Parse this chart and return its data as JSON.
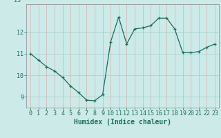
{
  "x": [
    0,
    1,
    2,
    3,
    4,
    5,
    6,
    7,
    8,
    9,
    10,
    11,
    12,
    13,
    14,
    15,
    16,
    17,
    18,
    19,
    20,
    21,
    22,
    23
  ],
  "y": [
    11.0,
    10.7,
    10.4,
    10.2,
    9.9,
    9.5,
    9.2,
    8.85,
    8.82,
    9.1,
    11.55,
    12.7,
    11.45,
    12.15,
    12.2,
    12.3,
    12.65,
    12.65,
    12.15,
    11.05,
    11.05,
    11.1,
    11.3,
    11.45
  ],
  "line_color": "#1a6b5a",
  "marker": "+",
  "bg_color": "#cceae8",
  "vgrid_color": "#d9b8b8",
  "hgrid_color": "#aad4d0",
  "xlabel": "Humidex (Indice chaleur)",
  "ylim": [
    8.5,
    13.3
  ],
  "xlim": [
    -0.5,
    23.5
  ],
  "yticks": [
    9,
    10,
    11,
    12
  ],
  "xticks": [
    0,
    1,
    2,
    3,
    4,
    5,
    6,
    7,
    8,
    9,
    10,
    11,
    12,
    13,
    14,
    15,
    16,
    17,
    18,
    19,
    20,
    21,
    22,
    23
  ],
  "tick_fontsize": 6.0,
  "xlabel_fontsize": 7.0
}
